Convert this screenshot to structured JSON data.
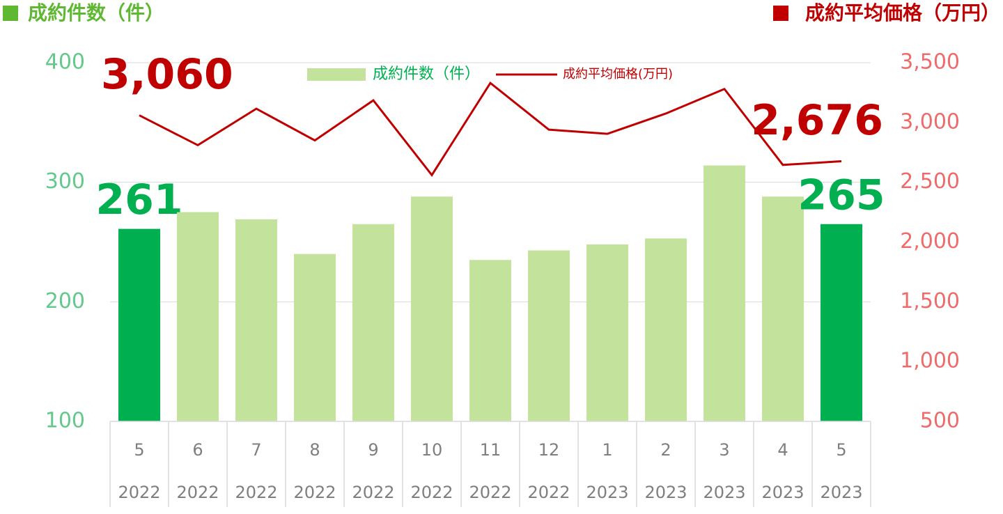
{
  "chart_data": {
    "type": "bar_line",
    "y_label": "成約件数（件）",
    "y2_label": "成約平均価格（万円）",
    "categories": [
      "5",
      "6",
      "7",
      "8",
      "9",
      "10",
      "11",
      "12",
      "1",
      "2",
      "3",
      "4",
      "5"
    ],
    "category_years": [
      "2022",
      "2022",
      "2022",
      "2022",
      "2022",
      "2022",
      "2022",
      "2022",
      "2023",
      "2023",
      "2023",
      "2023",
      "2023"
    ],
    "series": [
      {
        "name": "成約件数（件）",
        "type": "bar",
        "axis": "y",
        "color": "#c3e39c",
        "colors": [
          "#00b050",
          "#c3e39c",
          "#c3e39c",
          "#c3e39c",
          "#c3e39c",
          "#c3e39c",
          "#c3e39c",
          "#c3e39c",
          "#c3e39c",
          "#c3e39c",
          "#c3e39c",
          "#c3e39c",
          "#00b050"
        ],
        "values": [
          261,
          275,
          269,
          240,
          265,
          288,
          235,
          243,
          248,
          253,
          314,
          288,
          265
        ],
        "value_labels": [
          "261",
          null,
          null,
          null,
          null,
          null,
          null,
          null,
          null,
          null,
          null,
          null,
          "265"
        ]
      },
      {
        "name": "成約平均価格(万円)",
        "type": "line",
        "axis": "y2",
        "color": "#c00000",
        "values": [
          3060,
          2810,
          3115,
          2850,
          3185,
          2560,
          3330,
          2940,
          2905,
          3075,
          3280,
          2645,
          2676
        ],
        "value_labels": [
          "3,060",
          null,
          null,
          null,
          null,
          null,
          null,
          null,
          null,
          null,
          null,
          null,
          "2,676"
        ]
      }
    ],
    "ylim": [
      100,
      400
    ],
    "yticks": [
      100,
      200,
      300,
      400
    ],
    "y2lim": [
      500,
      3500
    ],
    "y2ticks": [
      {
        "value": 500,
        "label": "500"
      },
      {
        "value": 1000,
        "label": "1,000"
      },
      {
        "value": 1500,
        "label": "1,500"
      },
      {
        "value": 2000,
        "label": "2,000"
      },
      {
        "value": 2500,
        "label": "2,500"
      },
      {
        "value": 3000,
        "label": "3,000"
      },
      {
        "value": 3500,
        "label": "3,500"
      }
    ],
    "grid": true
  }
}
